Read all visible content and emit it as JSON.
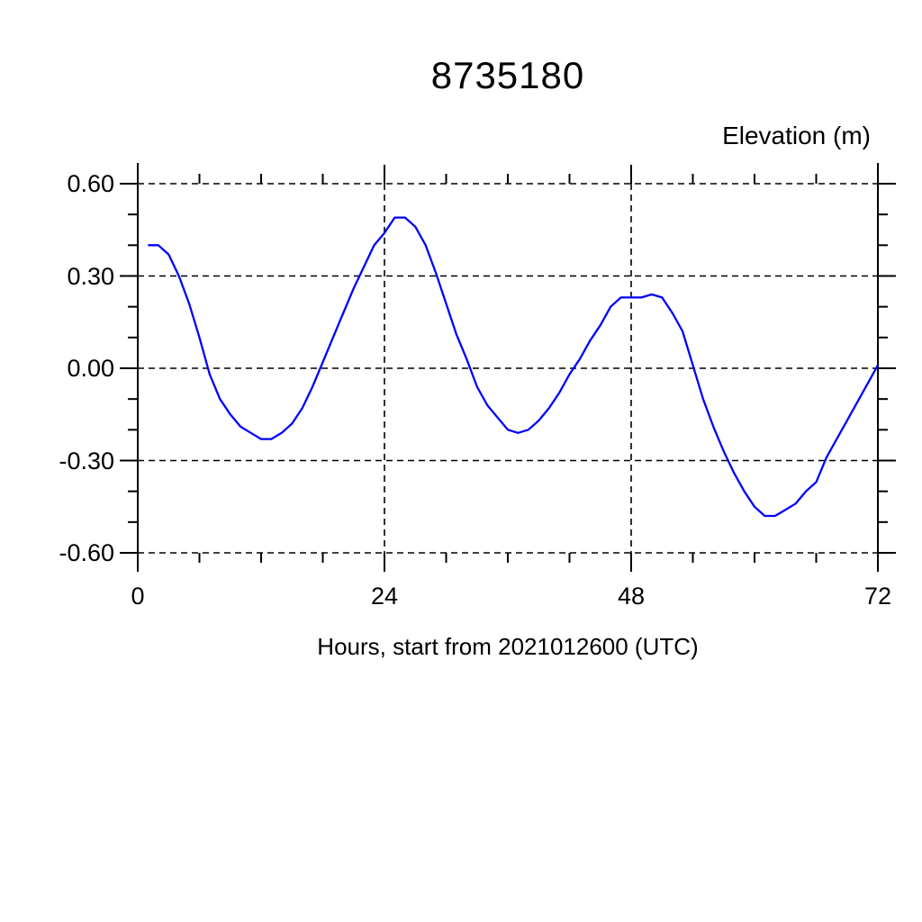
{
  "title": "8735180",
  "chart_data": {
    "type": "line",
    "title": "8735180",
    "ylabel": "Elevation (m)",
    "xlabel": "Hours, start from 2021012600 (UTC)",
    "xlim": [
      0,
      72
    ],
    "ylim": [
      -0.6,
      0.6
    ],
    "grid": "dashed, at x major ticks and y major ticks",
    "legend": "none",
    "xticks": {
      "major": [
        0,
        24,
        48,
        72
      ],
      "labels": [
        "0",
        "24",
        "48",
        "72"
      ],
      "minor_interval": 6
    },
    "yticks": {
      "major": [
        0.6,
        0.3,
        0.0,
        -0.3,
        -0.6
      ],
      "labels": [
        "0.60",
        "0.30",
        "0.00",
        "-0.30",
        "-0.60"
      ],
      "minor_interval": 0.1
    },
    "series": [
      {
        "name": "elevation",
        "color": "#0000ff",
        "x": [
          1,
          2,
          3,
          4,
          5,
          6,
          7,
          8,
          9,
          10,
          11,
          12,
          13,
          14,
          15,
          16,
          17,
          18,
          19,
          20,
          21,
          22,
          23,
          24,
          25,
          26,
          27,
          28,
          29,
          30,
          31,
          32,
          33,
          34,
          35,
          36,
          37,
          38,
          39,
          40,
          41,
          42,
          43,
          44,
          45,
          46,
          47,
          48,
          49,
          50,
          51,
          52,
          53,
          54,
          55,
          56,
          57,
          58,
          59,
          60,
          61,
          62,
          63,
          64,
          65,
          66,
          67,
          68,
          69,
          70,
          71,
          72
        ],
        "values": [
          0.4,
          0.4,
          0.37,
          0.3,
          0.21,
          0.1,
          -0.02,
          -0.1,
          -0.15,
          -0.19,
          -0.21,
          -0.23,
          -0.23,
          -0.21,
          -0.18,
          -0.13,
          -0.06,
          0.02,
          0.1,
          0.18,
          0.26,
          0.33,
          0.4,
          0.44,
          0.49,
          0.49,
          0.46,
          0.4,
          0.31,
          0.21,
          0.11,
          0.03,
          -0.06,
          -0.12,
          -0.16,
          -0.2,
          -0.21,
          -0.2,
          -0.17,
          -0.13,
          -0.08,
          -0.02,
          0.03,
          0.09,
          0.14,
          0.2,
          0.23,
          0.23,
          0.23,
          0.24,
          0.23,
          0.18,
          0.12,
          0.01,
          -0.1,
          -0.19,
          -0.27,
          -0.34,
          -0.4,
          -0.45,
          -0.48,
          -0.48,
          -0.46,
          -0.44,
          -0.4,
          -0.37,
          -0.29,
          -0.23,
          -0.17,
          -0.11,
          -0.05,
          0.01
        ]
      }
    ],
    "frame_color": "#000000",
    "background_color": "#ffffff"
  }
}
